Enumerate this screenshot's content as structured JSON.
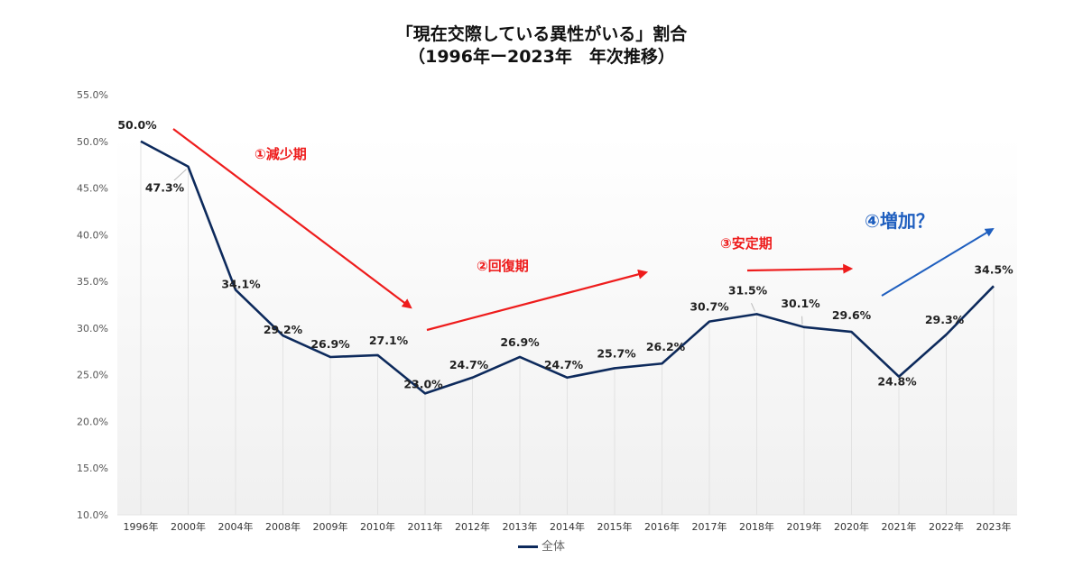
{
  "title": {
    "line1": "「現在交際している異性がいる」割合",
    "line2": "（1996年ー2023年　年次推移）"
  },
  "legend": {
    "label": "全体"
  },
  "colors": {
    "series": "#0d2a5c",
    "annotation_red": "#ee1c1c",
    "annotation_blue": "#1f5fbf",
    "grid": "#dddddd"
  },
  "annotations": [
    {
      "label": "①減少期",
      "color": "#ee1c1c"
    },
    {
      "label": "②回復期",
      "color": "#ee1c1c"
    },
    {
      "label": "③安定期",
      "color": "#ee1c1c"
    },
    {
      "label": "④増加？",
      "color": "#1f5fbf"
    }
  ],
  "chart_data": {
    "type": "line",
    "title": "「現在交際している異性がいる」割合（1996年ー2023年　年次推移）",
    "xlabel": "",
    "ylabel": "",
    "categories": [
      "1996年",
      "2000年",
      "2004年",
      "2008年",
      "2009年",
      "2010年",
      "2011年",
      "2012年",
      "2013年",
      "2014年",
      "2015年",
      "2016年",
      "2017年",
      "2018年",
      "2019年",
      "2020年",
      "2021年",
      "2022年",
      "2023年"
    ],
    "series": [
      {
        "name": "全体",
        "values": [
          50.0,
          47.3,
          34.1,
          29.2,
          26.9,
          27.1,
          23.0,
          24.7,
          26.9,
          24.7,
          25.7,
          26.2,
          30.7,
          31.5,
          30.1,
          29.6,
          24.8,
          29.3,
          34.5
        ],
        "labels": [
          "50.0%",
          "47.3%",
          "34.1%",
          "29.2%",
          "26.9%",
          "27.1%",
          "23.0%",
          "24.7%",
          "26.9%",
          "24.7%",
          "25.7%",
          "26.2%",
          "30.7%",
          "31.5%",
          "30.1%",
          "29.6%",
          "24.8%",
          "29.3%",
          "34.5%"
        ]
      }
    ],
    "ylim": [
      10.0,
      55.0
    ],
    "yticks": [
      "10.0%",
      "15.0%",
      "20.0%",
      "25.0%",
      "30.0%",
      "35.0%",
      "40.0%",
      "45.0%",
      "50.0%",
      "55.0%"
    ],
    "ytick_values": [
      10,
      15,
      20,
      25,
      30,
      35,
      40,
      45,
      50,
      55
    ],
    "grid": "vertical",
    "legend": "bottom"
  }
}
